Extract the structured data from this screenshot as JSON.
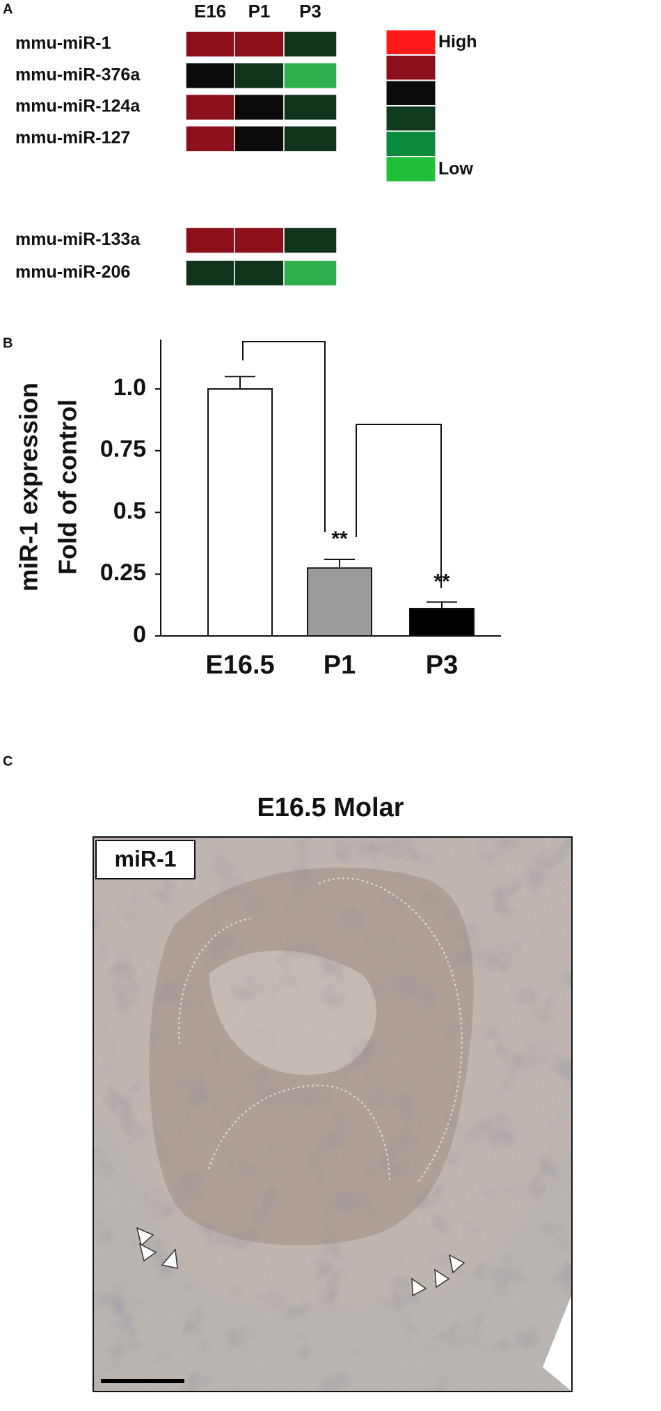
{
  "panel_labels": [
    "A",
    "B",
    "C"
  ],
  "heatmap": {
    "columns": [
      "E16",
      "P1",
      "P3"
    ],
    "rows": [
      {
        "label": "mmu-miR-1",
        "colors": [
          "#8c0f1c",
          "#8c0f1c",
          "#10331c"
        ]
      },
      {
        "label": "mmu-miR-376a",
        "colors": [
          "#0b0b0b",
          "#10331c",
          "#2eae4c"
        ]
      },
      {
        "label": "mmu-miR-124a",
        "colors": [
          "#8c0f1c",
          "#0b0b0b",
          "#10331c"
        ]
      },
      {
        "label": "mmu-miR-127",
        "colors": [
          "#8c0f1c",
          "#0b0b0b",
          "#10331c"
        ]
      },
      {
        "label": "mmu-miR-133a",
        "colors": [
          "#8c0f1c",
          "#8c0f1c",
          "#10331c"
        ]
      },
      {
        "label": "mmu-miR-206",
        "colors": [
          "#10331c",
          "#10331c",
          "#2eae4c"
        ]
      }
    ],
    "legend": {
      "colors": [
        "#ff1a1a",
        "#8c0f1c",
        "#0b0b0b",
        "#0f3a1d",
        "#0b8a3c",
        "#22c03a"
      ],
      "high": "High",
      "low": "Low"
    }
  },
  "chart_data": {
    "type": "bar",
    "y_label": [
      "miR-1 expression",
      "Fold of control"
    ],
    "categories": [
      "E16.5",
      "P1",
      "P3"
    ],
    "values": [
      1.0,
      0.275,
      0.11
    ],
    "errors": [
      0.05,
      0.035,
      0.027
    ],
    "colors": [
      "#ffffff",
      "#9b9b9b",
      "#000000"
    ],
    "ylim": [
      0,
      1.2
    ],
    "yticks": [
      0,
      0.25,
      0.5,
      0.75,
      {
        "value": 1,
        "label": "1.0"
      }
    ],
    "annotations": [
      {
        "text": "**",
        "category": "P1"
      },
      {
        "text": "**",
        "category": "P3"
      }
    ]
  },
  "image_panel": {
    "title": "E16.5 Molar",
    "label": "miR-1"
  }
}
